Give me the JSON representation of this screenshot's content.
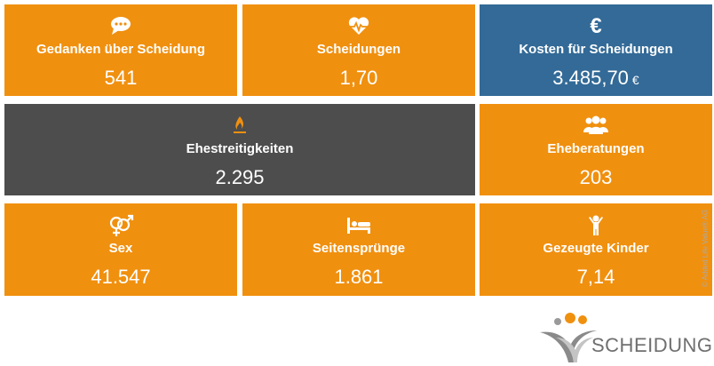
{
  "tiles": [
    {
      "label": "Gedanken über Scheidung",
      "value": "541"
    },
    {
      "label": "Scheidungen",
      "value": "1,70"
    },
    {
      "icon": "€",
      "label": "Kosten für Scheidungen",
      "value": "3.485,70",
      "unit": "€"
    },
    {
      "label": "Ehestreitigkeiten",
      "value": "2.295"
    },
    {
      "label": "Eheberatungen",
      "value": "203"
    },
    {
      "label": "Sex",
      "value": "41.547"
    },
    {
      "label": "Seitensprünge",
      "value": "1.861"
    },
    {
      "label": "Gezeugte Kinder",
      "value": "7,14"
    }
  ],
  "copyright": "© Added Life Value® AG",
  "logo": "SCHEIDUNG.de"
}
